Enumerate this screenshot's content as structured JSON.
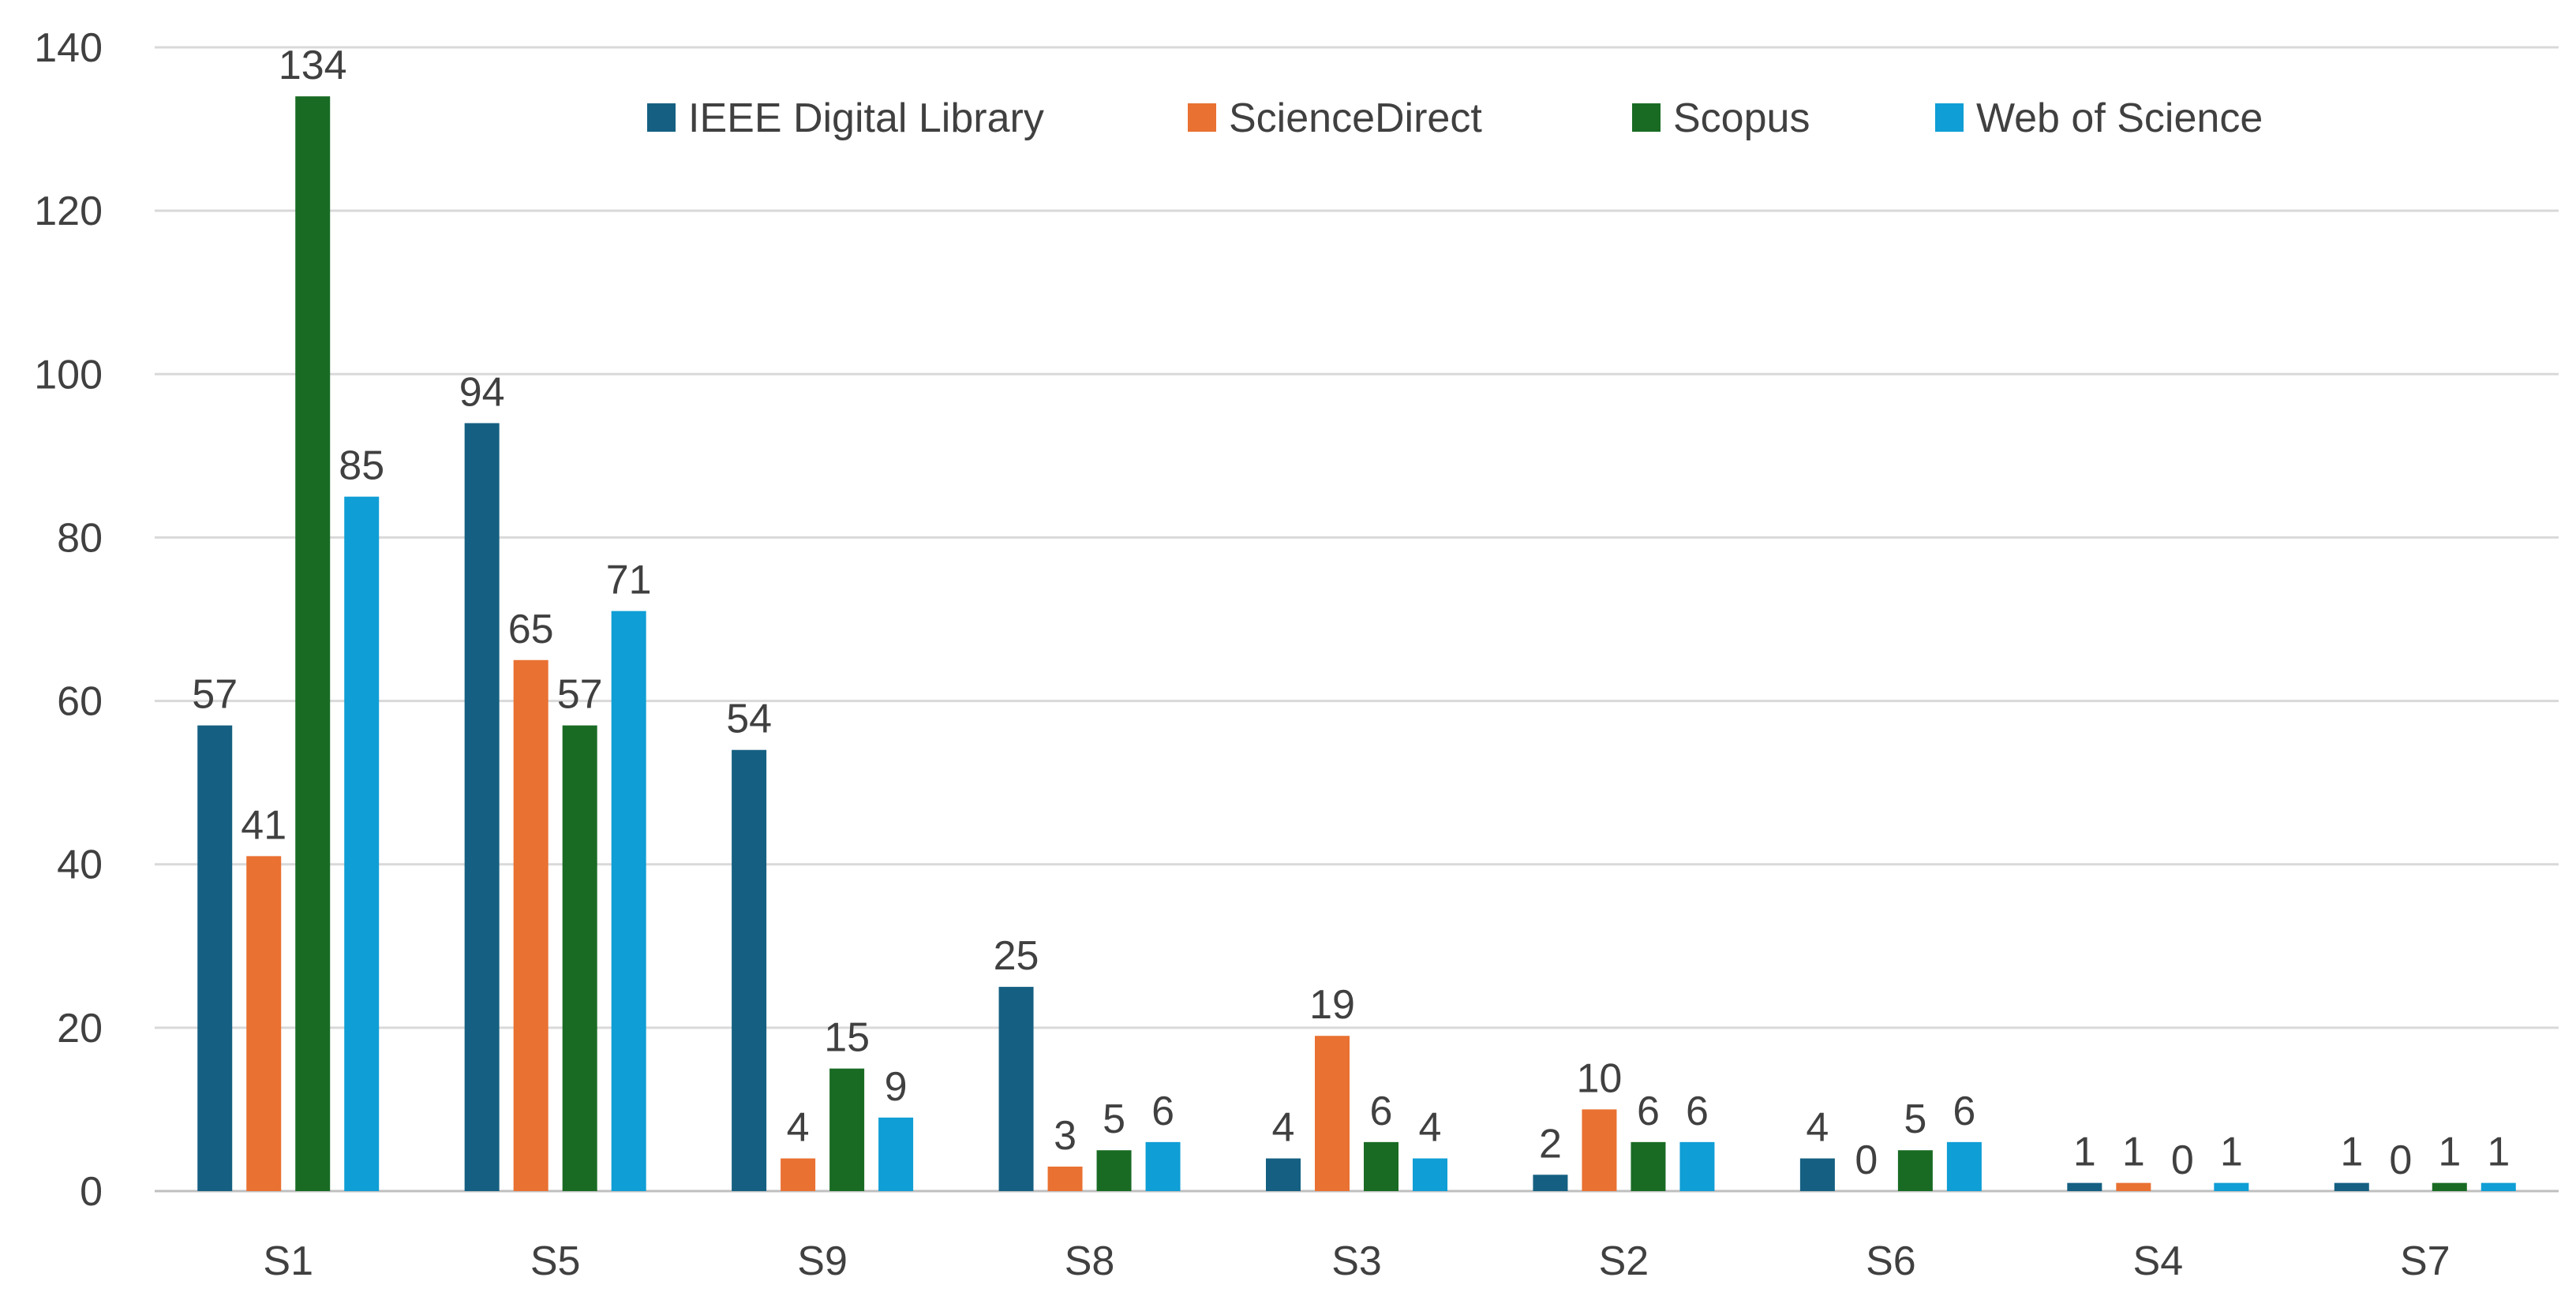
{
  "chart_data": {
    "type": "bar",
    "categories": [
      "S1",
      "S5",
      "S9",
      "S8",
      "S3",
      "S2",
      "S6",
      "S4",
      "S7"
    ],
    "series": [
      {
        "name": "IEEE Digital Library",
        "color": "#156082",
        "values": [
          57,
          94,
          54,
          25,
          4,
          2,
          4,
          1,
          1
        ]
      },
      {
        "name": "ScienceDirect",
        "color": "#E97132",
        "values": [
          41,
          65,
          4,
          3,
          19,
          10,
          0,
          1,
          0
        ]
      },
      {
        "name": "Scopus",
        "color": "#196B24",
        "values": [
          134,
          57,
          15,
          5,
          6,
          6,
          5,
          0,
          1
        ]
      },
      {
        "name": "Web of Science",
        "color": "#0F9ED5",
        "values": [
          85,
          71,
          9,
          6,
          4,
          6,
          6,
          1,
          1
        ]
      }
    ],
    "yticks": [
      0,
      20,
      40,
      60,
      80,
      100,
      120,
      140
    ],
    "ylim": [
      0,
      140
    ],
    "grid": true,
    "legend": "top-right",
    "title": "",
    "xlabel": "",
    "ylabel": ""
  }
}
